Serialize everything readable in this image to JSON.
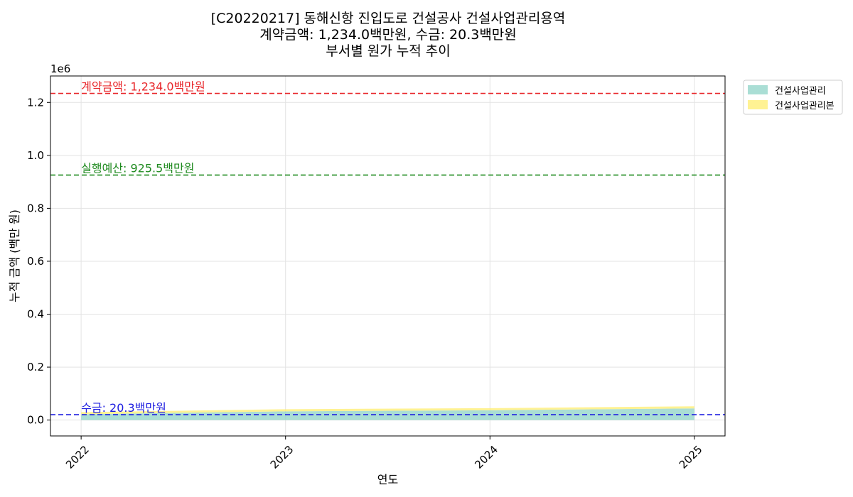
{
  "chart_data": {
    "type": "area",
    "title": [
      "[C20220217] 동해신항 진입도로 건설공사 건설사업관리용역",
      "계약금액: 1,234.0백만원, 수금: 20.3백만원",
      "부서별 원가 누적 추이"
    ],
    "xlabel": "연도",
    "ylabel": "누적 금액 (백만 원)",
    "y_offset_text": "1e6",
    "x": [
      2022,
      2023,
      2024,
      2025
    ],
    "x_ticks": [
      "2022",
      "2023",
      "2024",
      "2025"
    ],
    "xlim": [
      2021.85,
      2025.15
    ],
    "ylim": [
      -60000,
      1300000
    ],
    "y_ticks": [
      0,
      200000,
      400000,
      600000,
      800000,
      1000000,
      1200000
    ],
    "y_tick_labels": [
      "0.0",
      "0.2",
      "0.4",
      "0.6",
      "0.8",
      "1.0",
      "1.2"
    ],
    "stacked": true,
    "series": [
      {
        "name": "건설사업관리",
        "values": [
          22000,
          33000,
          37000,
          44000
        ],
        "color": "#8dd3c7"
      },
      {
        "name": "건설사업관리본",
        "values": [
          8000,
          8000,
          8000,
          8000
        ],
        "color": "#ffed6f"
      }
    ],
    "reference_lines": [
      {
        "label": "계약금액: 1,234.0백만원",
        "value": 1234000,
        "color": "#e8262a"
      },
      {
        "label": "실행예산: 925.5백만원",
        "value": 925500,
        "color": "#1f8a1f"
      },
      {
        "label": "수금: 20.3백만원",
        "value": 20300,
        "color": "#1c1ce0"
      }
    ],
    "grid": true,
    "legend": "outside-top-right"
  }
}
